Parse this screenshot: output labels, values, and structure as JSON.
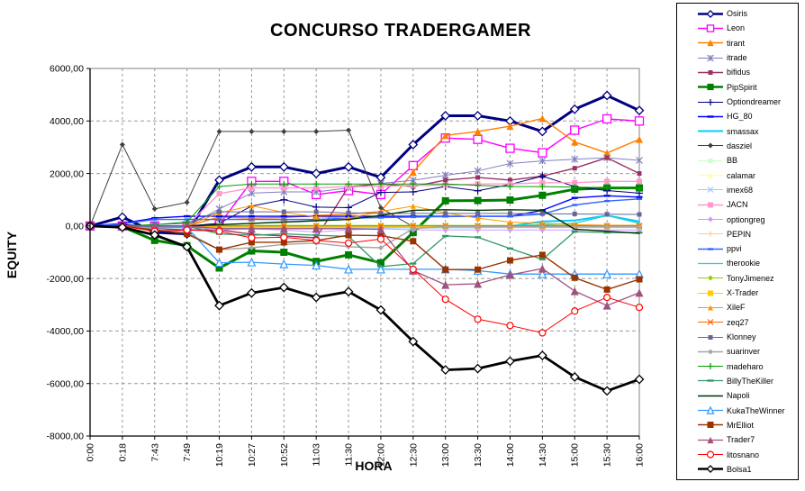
{
  "chart_data": {
    "type": "line",
    "title": "CONCURSO TRADERGAMER",
    "xlabel": "HORA",
    "ylabel": "EQUITY",
    "legend_position": "right",
    "grid": true,
    "background": "#ffffff",
    "grid_color": "#999999",
    "axis_color": "#000000",
    "plot_border_color": "#808080",
    "ylim": [
      -8000,
      6000
    ],
    "y_tick_labels": [
      "6000,00",
      "4000,00",
      "2000,00",
      "0,00",
      "-2000,00",
      "-4000,00",
      "-6000,00",
      "-8000,00"
    ],
    "y_tick_values": [
      6000,
      4000,
      2000,
      0,
      -2000,
      -4000,
      -6000,
      -8000
    ],
    "categories": [
      "0:00",
      "0:18",
      "7:43",
      "7:49",
      "10:19",
      "10:27",
      "10:52",
      "11:03",
      "11:30",
      "12:00",
      "12:30",
      "13:00",
      "13:30",
      "14:00",
      "14:30",
      "15:00",
      "15:30",
      "16:00"
    ],
    "series": [
      {
        "name": "Osiris",
        "color": "#000080",
        "width": 3,
        "marker": "diamond-open",
        "msize": 4.5,
        "values": [
          0,
          340,
          -240,
          -300,
          1750,
          2250,
          2250,
          2000,
          2250,
          1850,
          3100,
          4200,
          4200,
          4000,
          3600,
          4450,
          4970,
          4400
        ]
      },
      {
        "name": "Leon",
        "color": "#FF00FF",
        "width": 1.4,
        "marker": "square-open",
        "msize": 4.5,
        "values": [
          0,
          0,
          0,
          0,
          50,
          1700,
          1700,
          1200,
          1350,
          1200,
          2300,
          3350,
          3300,
          2960,
          2790,
          3650,
          4080,
          4000
        ]
      },
      {
        "name": "tirant",
        "color": "#FF8000",
        "width": 1.4,
        "marker": "triangle",
        "msize": 4,
        "values": [
          0,
          0,
          0,
          0,
          340,
          300,
          320,
          400,
          450,
          550,
          2050,
          3450,
          3600,
          3800,
          4100,
          3200,
          2780,
          3300
        ]
      },
      {
        "name": "itrade",
        "color": "#8080C0",
        "width": 1,
        "marker": "asterisk",
        "msize": 3.5,
        "values": [
          0,
          0,
          0,
          0,
          650,
          1250,
          1300,
          1300,
          1450,
          1620,
          1740,
          1930,
          2100,
          2380,
          2480,
          2540,
          2600,
          2500
        ]
      },
      {
        "name": "bifidus",
        "color": "#993366",
        "width": 1.4,
        "marker": "square",
        "msize": 2.5,
        "values": [
          0,
          0,
          -100,
          -150,
          -150,
          -310,
          -380,
          -450,
          1500,
          1600,
          1500,
          1750,
          1850,
          1750,
          1900,
          2200,
          2600,
          2000
        ]
      },
      {
        "name": "PipSpirit",
        "color": "#008000",
        "width": 3,
        "marker": "square",
        "msize": 4,
        "values": [
          0,
          -30,
          -550,
          -750,
          -1600,
          -950,
          -1000,
          -1350,
          -1100,
          -1400,
          -250,
          960,
          970,
          990,
          1170,
          1400,
          1450,
          1450
        ]
      },
      {
        "name": "Optiondreamer",
        "color": "#000080",
        "width": 1,
        "marker": "plus",
        "msize": 4,
        "values": [
          0,
          50,
          0,
          0,
          100,
          760,
          1000,
          720,
          700,
          1280,
          1300,
          1500,
          1340,
          1580,
          1900,
          1500,
          1350,
          1250
        ]
      },
      {
        "name": "HG_80",
        "color": "#0000FF",
        "width": 1.4,
        "marker": "dash",
        "msize": 3.5,
        "values": [
          0,
          100,
          300,
          370,
          370,
          370,
          370,
          370,
          370,
          370,
          370,
          370,
          370,
          370,
          600,
          1070,
          1150,
          1100
        ]
      },
      {
        "name": "smassax",
        "color": "#00CCFF",
        "width": 2,
        "marker": "none",
        "msize": 3,
        "values": [
          0,
          0,
          -50,
          -50,
          -50,
          -50,
          -50,
          -50,
          -50,
          -50,
          -50,
          -50,
          -50,
          0,
          170,
          210,
          400,
          170
        ]
      },
      {
        "name": "dasziel",
        "color": "#404040",
        "width": 1,
        "marker": "diamond",
        "msize": 3,
        "values": [
          0,
          3100,
          650,
          900,
          3600,
          3600,
          3600,
          3600,
          3650,
          690,
          -30,
          -30,
          -30,
          -30,
          -30,
          -30,
          -30,
          -30
        ]
      },
      {
        "name": "BB",
        "color": "#CCFFCC",
        "width": 1,
        "marker": "square",
        "msize": 2.5,
        "values": [
          0,
          0,
          0,
          0,
          30,
          30,
          30,
          30,
          30,
          30,
          30,
          30,
          30,
          30,
          30,
          30,
          30,
          30
        ]
      },
      {
        "name": "calamar",
        "color": "#FFFF99",
        "width": 1,
        "marker": "triangle",
        "msize": 3,
        "values": [
          0,
          0,
          0,
          0,
          -20,
          -20,
          -20,
          -20,
          -20,
          -20,
          -20,
          -20,
          -20,
          -20,
          -20,
          -20,
          -20,
          -20
        ]
      },
      {
        "name": "imex68",
        "color": "#99CCFF",
        "width": 1,
        "marker": "x",
        "msize": 3,
        "values": [
          0,
          0,
          0,
          0,
          -60,
          -60,
          -60,
          -60,
          -60,
          -60,
          -60,
          -60,
          -60,
          -60,
          -60,
          -60,
          -60,
          -60
        ]
      },
      {
        "name": "JACN",
        "color": "#FF99CC",
        "width": 1.4,
        "marker": "square",
        "msize": 3,
        "values": [
          0,
          0,
          0,
          0,
          1235,
          1450,
          1450,
          1450,
          1500,
          1500,
          1550,
          1550,
          1600,
          1600,
          1650,
          1650,
          1700,
          1700
        ]
      },
      {
        "name": "optiongreg",
        "color": "#CC99FF",
        "width": 1,
        "marker": "diamond",
        "msize": 3,
        "values": [
          0,
          0,
          0,
          -50,
          -150,
          -110,
          -150,
          -230,
          -150,
          -100,
          -150,
          -150,
          -150,
          -150,
          -150,
          -150,
          -150,
          -150
        ]
      },
      {
        "name": "PEPIN",
        "color": "#FFCC99",
        "width": 1,
        "marker": "plus",
        "msize": 3,
        "values": [
          0,
          0,
          0,
          0,
          -30,
          -30,
          -30,
          -30,
          -30,
          -30,
          -30,
          -30,
          -30,
          -30,
          -30,
          -30,
          -30,
          -30
        ]
      },
      {
        "name": "ppvi",
        "color": "#3366FF",
        "width": 1.4,
        "marker": "dash",
        "msize": 3,
        "values": [
          0,
          80,
          250,
          250,
          250,
          250,
          250,
          250,
          300,
          320,
          340,
          360,
          370,
          370,
          450,
          800,
          950,
          1030
        ]
      },
      {
        "name": "therookie",
        "color": "#33CCCC",
        "width": 1.3,
        "marker": "none",
        "msize": 3,
        "values": [
          0,
          0,
          0,
          0,
          0,
          0,
          0,
          0,
          0,
          0,
          0,
          0,
          0,
          0,
          50,
          100,
          400,
          100
        ]
      },
      {
        "name": "TonyJimenez",
        "color": "#99CC00",
        "width": 1,
        "marker": "diamond",
        "msize": 3,
        "values": [
          0,
          0,
          0,
          0,
          20,
          20,
          20,
          20,
          20,
          20,
          20,
          20,
          20,
          20,
          20,
          20,
          20,
          20
        ]
      },
      {
        "name": "X-Trader",
        "color": "#FFCC00",
        "width": 1,
        "marker": "square",
        "msize": 3,
        "values": [
          0,
          0,
          0,
          0,
          -30,
          -30,
          -30,
          -30,
          -30,
          -30,
          -30,
          -30,
          -30,
          -30,
          -30,
          -30,
          -30,
          -30
        ]
      },
      {
        "name": "XileF",
        "color": "#FF9900",
        "width": 1,
        "marker": "triangle",
        "msize": 3,
        "values": [
          0,
          0,
          0,
          0,
          500,
          770,
          520,
          350,
          300,
          550,
          760,
          500,
          300,
          150,
          100,
          50,
          30,
          30
        ]
      },
      {
        "name": "zeq27",
        "color": "#FF6600",
        "width": 1,
        "marker": "x",
        "msize": 3,
        "values": [
          0,
          0,
          0,
          0,
          10,
          10,
          10,
          10,
          10,
          10,
          10,
          10,
          10,
          10,
          10,
          10,
          10,
          10
        ]
      },
      {
        "name": "Klonney",
        "color": "#666699",
        "width": 1,
        "marker": "square",
        "msize": 2.5,
        "values": [
          0,
          0,
          50,
          100,
          540,
          540,
          540,
          540,
          500,
          480,
          480,
          480,
          480,
          480,
          470,
          460,
          450,
          440
        ]
      },
      {
        "name": "suarinver",
        "color": "#A6A6A6",
        "width": 1.4,
        "marker": "diamond",
        "msize": 3,
        "values": [
          0,
          0,
          -100,
          -250,
          -900,
          -830,
          -700,
          -650,
          -790,
          -830,
          -100,
          -30,
          -30,
          -30,
          -30,
          -30,
          -30,
          -30
        ]
      },
      {
        "name": "madeharo",
        "color": "#00A000",
        "width": 1,
        "marker": "plus",
        "msize": 3.5,
        "values": [
          0,
          0,
          50,
          150,
          1500,
          1600,
          1600,
          1600,
          1600,
          1600,
          1600,
          1600,
          1550,
          1500,
          1500,
          1480,
          1460,
          1430
        ]
      },
      {
        "name": "BillyTheKiller",
        "color": "#339966",
        "width": 1.3,
        "marker": "dash",
        "msize": 3.5,
        "values": [
          0,
          0,
          0,
          0,
          -300,
          -350,
          -300,
          -350,
          -400,
          -1550,
          -1430,
          -380,
          -430,
          -860,
          -1270,
          -215,
          -250,
          -250
        ]
      },
      {
        "name": "Napoli",
        "color": "#003300",
        "width": 1.4,
        "marker": "none",
        "msize": 3,
        "values": [
          0,
          0,
          0,
          0,
          50,
          100,
          150,
          200,
          250,
          400,
          600,
          620,
          600,
          620,
          600,
          -120,
          -200,
          -280
        ]
      },
      {
        "name": "KukaTheWinner",
        "color": "#3399FF",
        "width": 1.3,
        "marker": "triangle-open",
        "msize": 4,
        "values": [
          0,
          0,
          0,
          -50,
          -1400,
          -1380,
          -1450,
          -1500,
          -1650,
          -1650,
          -1650,
          -1650,
          -1700,
          -1830,
          -1830,
          -1830,
          -1830,
          -1830
        ]
      },
      {
        "name": "MrElliot",
        "color": "#993300",
        "width": 1.4,
        "marker": "square",
        "msize": 3.5,
        "values": [
          0,
          0,
          -150,
          -300,
          -900,
          -620,
          -620,
          -550,
          -350,
          -370,
          -580,
          -1660,
          -1660,
          -1310,
          -1100,
          -1970,
          -2420,
          -2030
        ]
      },
      {
        "name": "Trader7",
        "color": "#A0527F",
        "width": 1.3,
        "marker": "triangle",
        "msize": 4.5,
        "values": [
          0,
          0,
          0,
          0,
          -100,
          -100,
          -100,
          -100,
          -100,
          -130,
          -1700,
          -2240,
          -2200,
          -1860,
          -1620,
          -2480,
          -3030,
          -2540
        ]
      },
      {
        "name": "litosnano",
        "color": "#FF0000",
        "width": 1,
        "marker": "circle-open",
        "msize": 3.5,
        "values": [
          0,
          0,
          -200,
          -150,
          -200,
          -450,
          -430,
          -550,
          -650,
          -500,
          -1650,
          -2790,
          -3550,
          -3790,
          -4070,
          -3240,
          -2720,
          -3100
        ]
      },
      {
        "name": "Bolsa1",
        "color": "#000000",
        "width": 2.8,
        "marker": "diamond-open",
        "msize": 4.5,
        "values": [
          0,
          -50,
          -340,
          -790,
          -3030,
          -2550,
          -2340,
          -2720,
          -2500,
          -3200,
          -4400,
          -5480,
          -5430,
          -5150,
          -4930,
          -5750,
          -6280,
          -5840
        ]
      }
    ]
  }
}
